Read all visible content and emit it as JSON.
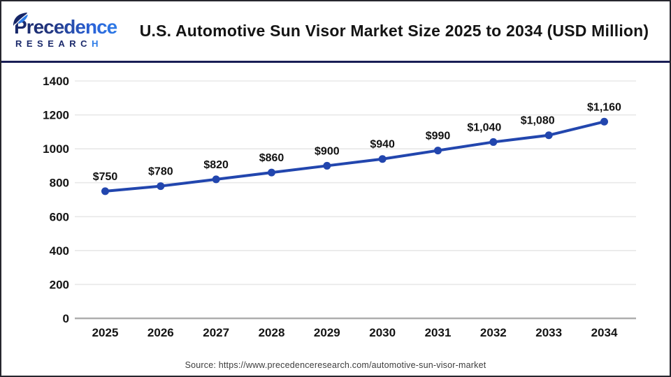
{
  "header": {
    "logo": {
      "brand_top": "Precedence",
      "brand_bottom_main": "RESEARC",
      "brand_bottom_last": "H"
    },
    "title": "U.S. Automotive Sun Visor Market Size 2025 to 2034 (USD Million)"
  },
  "chart_data": {
    "type": "line",
    "title": "U.S. Automotive Sun Visor Market Size 2025 to 2034 (USD Million)",
    "categories": [
      "2025",
      "2026",
      "2027",
      "2028",
      "2029",
      "2030",
      "2031",
      "2032",
      "2033",
      "2034"
    ],
    "values": [
      750,
      780,
      820,
      860,
      900,
      940,
      990,
      1040,
      1080,
      1160
    ],
    "data_labels": [
      "$750",
      "$780",
      "$820",
      "$860",
      "$900",
      "$940",
      "$990",
      "$1,040",
      "$1,080",
      "$1,160"
    ],
    "xlabel": "",
    "ylabel": "",
    "ylim": [
      0,
      1400
    ],
    "y_ticks": [
      0,
      200,
      400,
      600,
      800,
      1000,
      1200,
      1400
    ],
    "grid": "horizontal",
    "legend": "none",
    "line_color": "#2246ae",
    "marker_color": "#2246ae",
    "grid_color": "#e8e8e8",
    "axis_line_color": "#aeaeae",
    "tick_label_color": "#141414",
    "data_label_color": "#111111",
    "label_offsets_x": [
      0,
      0,
      0,
      0,
      0,
      0,
      0,
      -13,
      -16,
      0
    ]
  },
  "footer": {
    "source": "Source: https://www.precedenceresearch.com/automotive-sun-visor-market"
  }
}
